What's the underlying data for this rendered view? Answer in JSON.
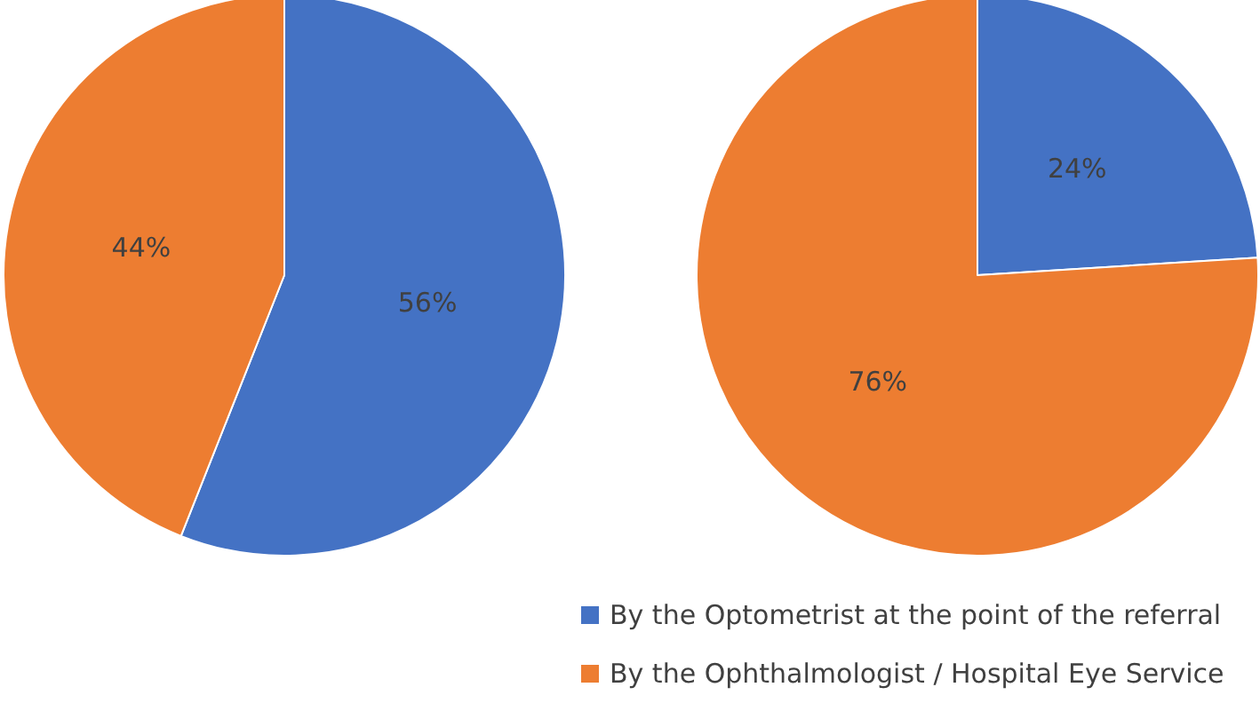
{
  "chart_data": [
    {
      "type": "pie",
      "categories": [
        "By the Optometrist at the point of the referral",
        "By the Ophthalmologist / Hospital Eye Service"
      ],
      "values": [
        56,
        44
      ],
      "value_labels": [
        "56%",
        "44%"
      ],
      "colors": [
        "#4472c4",
        "#ed7d31"
      ],
      "legend": "bottom"
    },
    {
      "type": "pie",
      "categories": [
        null,
        null
      ],
      "values": [
        24,
        76
      ],
      "value_labels": [
        "24%",
        "76%"
      ],
      "colors": [
        "#4472c4",
        "#ed7d31"
      ]
    }
  ]
}
